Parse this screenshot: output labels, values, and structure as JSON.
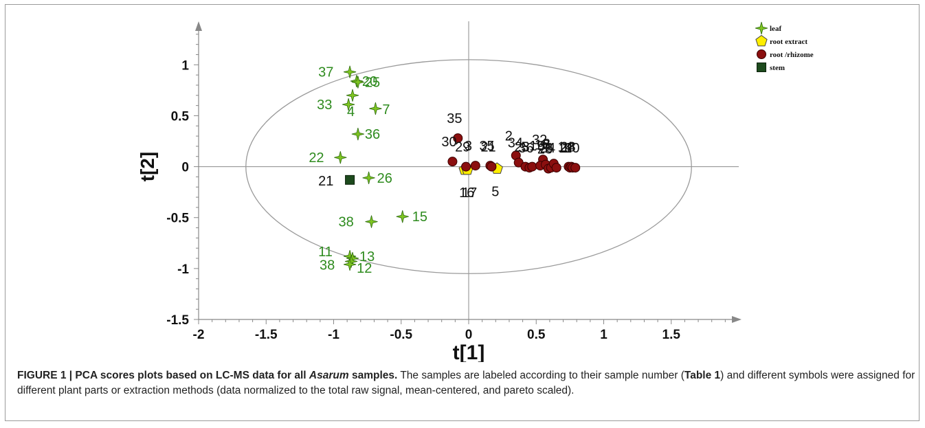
{
  "chart_data": {
    "type": "scatter",
    "xlabel": "t[1]",
    "ylabel": "t[2]",
    "xlim": [
      -2,
      2
    ],
    "ylim": [
      -1.5,
      1.4
    ],
    "x_ticks": [
      "-2",
      "-1.5",
      "-1",
      "-0.5",
      "0",
      "0.5",
      "1",
      "1.5"
    ],
    "y_ticks": [
      "1",
      "0.5",
      "0",
      "-0.5",
      "-1",
      "-1.5"
    ],
    "ellipse": {
      "cx": 0,
      "cy": 0,
      "rx": 1.65,
      "ry": 1.05
    },
    "legend_position": "top-right",
    "series": [
      {
        "name": "leaf",
        "marker": "star",
        "color": "#7ec421",
        "label_color": "#2e8b1e",
        "points": [
          {
            "label": "37",
            "x": -0.88,
            "y": 0.93
          },
          {
            "label": "20",
            "x": -0.83,
            "y": 0.84
          },
          {
            "label": "25",
            "x": -0.82,
            "y": 0.83
          },
          {
            "label": "4",
            "x": -0.86,
            "y": 0.7
          },
          {
            "label": "33",
            "x": -0.89,
            "y": 0.61
          },
          {
            "label": "7",
            "x": -0.69,
            "y": 0.57
          },
          {
            "label": "36",
            "x": -0.82,
            "y": 0.32
          },
          {
            "label": "22",
            "x": -0.95,
            "y": 0.09
          },
          {
            "label": "26",
            "x": -0.74,
            "y": -0.11
          },
          {
            "label": "15",
            "x": -0.49,
            "y": -0.49
          },
          {
            "label": "38",
            "x": -0.72,
            "y": -0.54
          },
          {
            "label": "11",
            "x": -0.88,
            "y": -0.88
          },
          {
            "label": "13",
            "x": -0.86,
            "y": -0.9
          },
          {
            "label": "38",
            "x": -0.87,
            "y": -0.93
          },
          {
            "label": "12",
            "x": -0.88,
            "y": -0.96
          }
        ]
      },
      {
        "name": "root extract",
        "marker": "pentagon",
        "color": "#ffee00",
        "points": [
          {
            "label": "16",
            "x": -0.03,
            "y": -0.03
          },
          {
            "label": "17",
            "x": -0.01,
            "y": -0.03
          },
          {
            "label": "5",
            "x": 0.21,
            "y": -0.02
          }
        ]
      },
      {
        "name": "root /rhizome",
        "marker": "circle",
        "color": "#8b0f0f",
        "points": [
          {
            "label": "35",
            "x": -0.08,
            "y": 0.28
          },
          {
            "label": "30",
            "x": -0.12,
            "y": 0.05
          },
          {
            "label": "29",
            "x": -0.02,
            "y": 0.0
          },
          {
            "label": "3",
            "x": 0.05,
            "y": 0.01
          },
          {
            "label": "35",
            "x": 0.16,
            "y": 0.01
          },
          {
            "label": "21",
            "x": 0.17,
            "y": 0.0
          },
          {
            "label": "2",
            "x": 0.35,
            "y": 0.11
          },
          {
            "label": "34",
            "x": 0.37,
            "y": 0.04
          },
          {
            "label": "23",
            "x": 0.42,
            "y": 0.0
          },
          {
            "label": "36",
            "x": 0.45,
            "y": -0.01
          },
          {
            "label": "5",
            "x": 0.47,
            "y": 0.0
          },
          {
            "label": "32",
            "x": 0.55,
            "y": 0.07
          },
          {
            "label": "19",
            "x": 0.53,
            "y": 0.01
          },
          {
            "label": "18",
            "x": 0.57,
            "y": 0.02
          },
          {
            "label": "28",
            "x": 0.59,
            "y": -0.02
          },
          {
            "label": "24",
            "x": 0.61,
            "y": -0.01
          },
          {
            "label": "8",
            "x": 0.63,
            "y": 0.03
          },
          {
            "label": "6",
            "x": 0.65,
            "y": -0.01
          },
          {
            "label": "14",
            "x": 0.74,
            "y": 0.0
          },
          {
            "label": "27",
            "x": 0.75,
            "y": -0.01
          },
          {
            "label": "28",
            "x": 0.76,
            "y": 0.0
          },
          {
            "label": "1",
            "x": 0.77,
            "y": -0.01
          },
          {
            "label": "10",
            "x": 0.79,
            "y": -0.01
          }
        ]
      },
      {
        "name": "stem",
        "marker": "square",
        "color": "#1d4a1d",
        "points": [
          {
            "label": "21",
            "x": -0.88,
            "y": -0.13
          }
        ]
      }
    ]
  },
  "caption": {
    "prefix": "FIGURE 1 | PCA scores plots based on LC-MS data for all ",
    "italic": "Asarum",
    "suffix": " samples.",
    "body_1": " The samples are labeled according to their sample number (",
    "table_ref": "Table 1",
    "body_2": ") and different symbols were assigned for different plant parts or extraction methods (data normalized to the total raw signal, mean-centered, and pareto scaled)."
  }
}
